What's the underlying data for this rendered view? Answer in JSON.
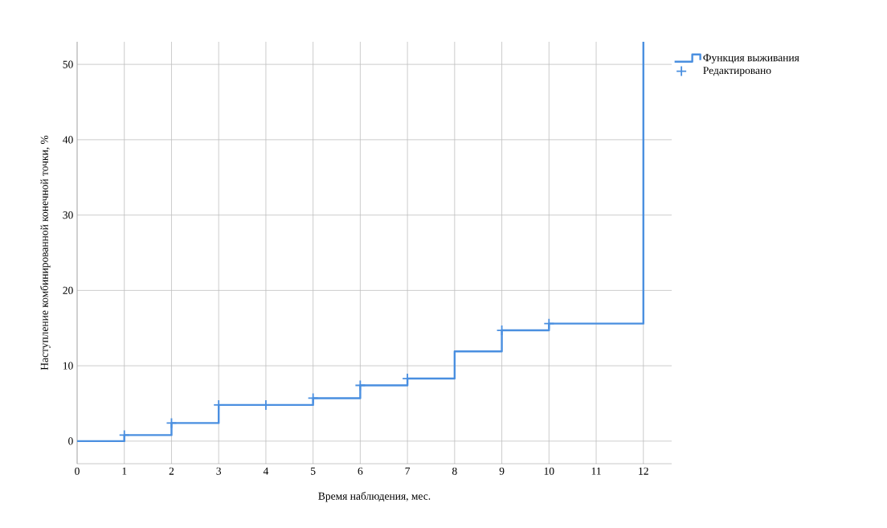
{
  "chart_data": {
    "type": "step",
    "xlabel": "Время наблюдения, мес.",
    "ylabel": "Наступление комбинированной конечной точки, %",
    "xlim": [
      0,
      12.6
    ],
    "ylim": [
      -3,
      53
    ],
    "xticks": [
      0,
      1,
      2,
      3,
      4,
      5,
      6,
      7,
      8,
      9,
      10,
      11,
      12
    ],
    "yticks": [
      0,
      10,
      20,
      30,
      40,
      50
    ],
    "grid": true,
    "legend": "top right",
    "series": [
      {
        "name": "Функция выживания",
        "color": "#4a8fe0",
        "x": [
          0,
          1,
          2,
          3,
          5,
          6,
          7,
          8,
          9,
          10,
          12
        ],
        "values": [
          0,
          0.8,
          2.4,
          4.8,
          5.7,
          7.4,
          8.3,
          11.9,
          14.7,
          15.6,
          53
        ]
      },
      {
        "name": "Редактировано",
        "type": "scatter",
        "marker": "cross",
        "color": "#4a8fe0",
        "x": [
          1,
          2,
          3,
          4,
          5,
          6,
          7,
          9,
          10
        ],
        "values": [
          0.8,
          2.4,
          4.8,
          4.8,
          5.7,
          7.4,
          8.3,
          14.7,
          15.6
        ]
      }
    ]
  }
}
